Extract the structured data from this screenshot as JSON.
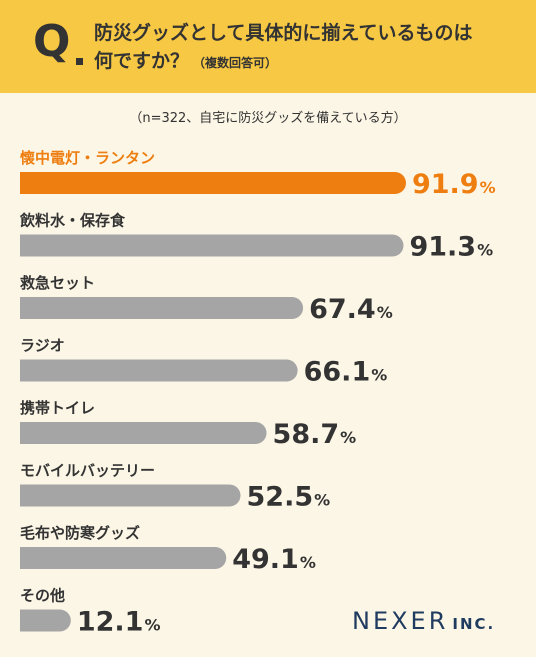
{
  "header": {
    "q_mark": "Q",
    "title_line1": "防災グッズとして具体的に揃えているものは",
    "title_line2": "何ですか？",
    "title_note": "（複数回答可）"
  },
  "subtitle": "（n=322、自宅に防災グッズを備えている方）",
  "logo": {
    "name": "NEXER",
    "suffix": "INC."
  },
  "colors": {
    "highlight": "#ee7e10",
    "bar": "#a5a5a5",
    "background": "#fcf6e6",
    "header": "#f7c843",
    "text": "#333333",
    "logo": "#1f3b5f"
  },
  "chart_data": {
    "type": "bar",
    "orientation": "horizontal",
    "unit": "%",
    "categories": [
      "懐中電灯・ランタン",
      "飲料水・保存食",
      "救急セット",
      "ラジオ",
      "携帯トイレ",
      "モバイルバッテリー",
      "毛布や防寒グッズ",
      "その他"
    ],
    "values": [
      91.9,
      91.3,
      67.4,
      66.1,
      58.7,
      52.5,
      49.1,
      12.1
    ],
    "labels": [
      "91.9",
      "91.3",
      "67.4",
      "66.1",
      "58.7",
      "52.5",
      "49.1",
      "12.1"
    ],
    "highlight_index": 0,
    "xlim": [
      0,
      100
    ],
    "grid": false,
    "legend": "none"
  }
}
